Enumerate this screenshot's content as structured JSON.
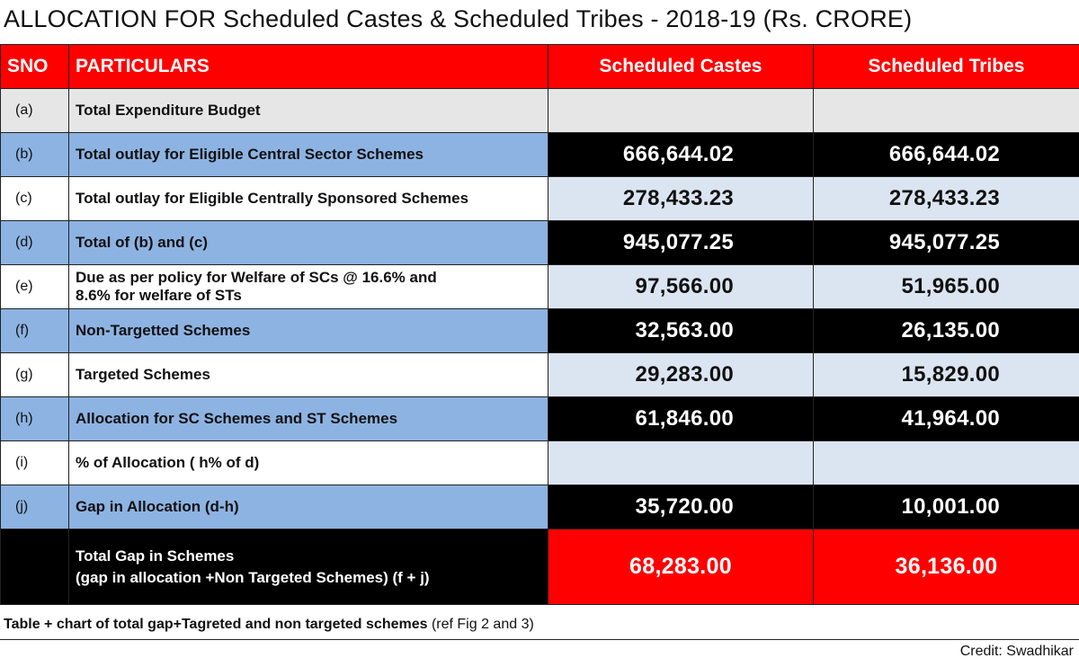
{
  "title": "ALLOCATION FOR Scheduled Castes & Scheduled Tribes - 2018-19 (Rs. CRORE)",
  "headers": {
    "sno": "SNO",
    "particulars": "PARTICULARS",
    "sc": "Scheduled Castes",
    "st": "Scheduled Tribes"
  },
  "rows": [
    {
      "sno": "(a)",
      "particulars": "Total Expenditure Budget",
      "sc": "",
      "st": ""
    },
    {
      "sno": "(b)",
      "particulars": "Total outlay for Eligible Central Sector Schemes",
      "sc": "666,644.02",
      "st": "666,644.02"
    },
    {
      "sno": "(c)",
      "particulars": "Total outlay for Eligible Centrally Sponsored Schemes",
      "sc": "278,433.23",
      "st": "278,433.23"
    },
    {
      "sno": "(d)",
      "particulars": "Total of (b) and (c)",
      "sc": "945,077.25",
      "st": "945,077.25"
    },
    {
      "sno": "(e)",
      "particulars_line1": "Due as per policy  for Welfare of SCs @ 16.6% and",
      "particulars_line2": "8.6% for welfare of STs",
      "sc": "97,566.00",
      "st": "51,965.00"
    },
    {
      "sno": "(f)",
      "particulars": "Non-Targetted Schemes",
      "sc": "32,563.00",
      "st": "26,135.00"
    },
    {
      "sno": "(g)",
      "particulars": "Targeted Schemes",
      "sc": "29,283.00",
      "st": "15,829.00"
    },
    {
      "sno": "(h)",
      "particulars": "Allocation for SC Schemes and ST Schemes",
      "sc": "61,846.00",
      "st": "41,964.00"
    },
    {
      "sno": "(i)",
      "particulars": "% of Allocation ( h% of d)",
      "sc": "",
      "st": ""
    },
    {
      "sno": "(j)",
      "particulars": "Gap in Allocation (d-h)",
      "sc": "35,720.00",
      "st": "10,001.00"
    }
  ],
  "total": {
    "line1": "Total Gap in Schemes",
    "line2": "(gap in allocation +Non Targeted Schemes) (f + j)",
    "sc": "68,283.00",
    "st": "36,136.00"
  },
  "note": {
    "bold": "Table + chart of total gap+Tagreted and non targeted schemes",
    "normal": " (ref Fig 2 and 3)"
  },
  "credit": "Credit: Swadhikar",
  "colors": {
    "header_red": "#ff0000",
    "row_blue": "#8db3e2",
    "value_light_blue": "#dbe5f1",
    "value_black": "#000000",
    "row_gray": "#e6e6e6"
  }
}
